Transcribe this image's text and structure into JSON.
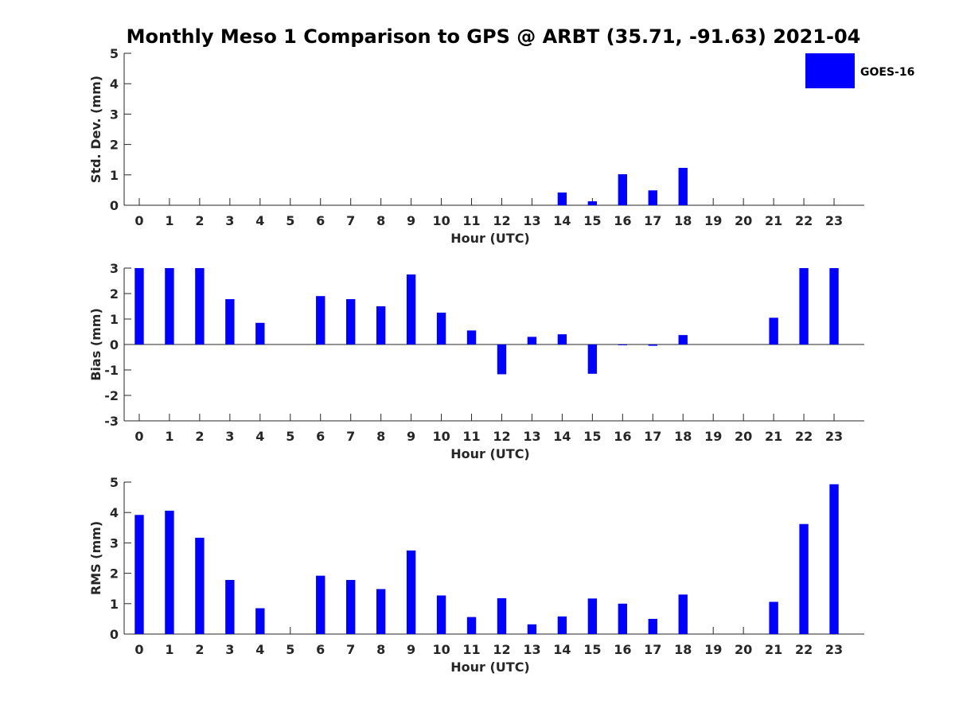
{
  "title": "Monthly Meso 1 Comparison to GPS @ ARBT (35.71, -91.63) 2021-04",
  "legend": {
    "label": "GOES-16",
    "color": "#0000ff"
  },
  "chart_data": [
    {
      "type": "bar",
      "xlabel": "Hour (UTC)",
      "ylabel": "Std. Dev. (mm)",
      "ylim": [
        0,
        5
      ],
      "yticks": [
        "0",
        "1",
        "2",
        "3",
        "4",
        "5"
      ],
      "categories": [
        "0",
        "1",
        "2",
        "3",
        "4",
        "5",
        "6",
        "7",
        "8",
        "9",
        "10",
        "11",
        "12",
        "13",
        "14",
        "15",
        "16",
        "17",
        "18",
        "19",
        "20",
        "21",
        "22",
        "23"
      ],
      "series": [
        {
          "name": "GOES-16",
          "values": [
            null,
            null,
            null,
            null,
            null,
            null,
            null,
            null,
            null,
            null,
            null,
            null,
            null,
            null,
            0.42,
            0.13,
            1.02,
            0.49,
            1.23,
            null,
            null,
            null,
            null,
            null
          ]
        }
      ]
    },
    {
      "type": "bar",
      "xlabel": "Hour (UTC)",
      "ylabel": "Bias (mm)",
      "ylim": [
        -3,
        3
      ],
      "yticks": [
        "-3",
        "-2",
        "-1",
        "0",
        "1",
        "2",
        "3"
      ],
      "categories": [
        "0",
        "1",
        "2",
        "3",
        "4",
        "5",
        "6",
        "7",
        "8",
        "9",
        "10",
        "11",
        "12",
        "13",
        "14",
        "15",
        "16",
        "17",
        "18",
        "19",
        "20",
        "21",
        "22",
        "23"
      ],
      "series": [
        {
          "name": "GOES-16",
          "values": [
            3.0,
            3.0,
            3.0,
            1.78,
            0.85,
            null,
            1.9,
            1.78,
            1.5,
            2.75,
            1.25,
            0.55,
            -1.17,
            0.3,
            0.4,
            -1.15,
            0,
            -0.05,
            0.37,
            null,
            null,
            1.05,
            3.0,
            3.0
          ]
        }
      ]
    },
    {
      "type": "bar",
      "xlabel": "Hour (UTC)",
      "ylabel": "RMS (mm)",
      "ylim": [
        0,
        5
      ],
      "yticks": [
        "0",
        "1",
        "2",
        "3",
        "4",
        "5"
      ],
      "categories": [
        "0",
        "1",
        "2",
        "3",
        "4",
        "5",
        "6",
        "7",
        "8",
        "9",
        "10",
        "11",
        "12",
        "13",
        "14",
        "15",
        "16",
        "17",
        "18",
        "19",
        "20",
        "21",
        "22",
        "23"
      ],
      "series": [
        {
          "name": "GOES-16",
          "values": [
            3.92,
            4.06,
            3.17,
            1.78,
            0.85,
            null,
            1.92,
            1.78,
            1.48,
            2.75,
            1.27,
            0.56,
            1.18,
            0.32,
            0.58,
            1.17,
            1.0,
            0.5,
            1.3,
            null,
            null,
            1.06,
            3.62,
            4.93
          ]
        }
      ]
    }
  ]
}
